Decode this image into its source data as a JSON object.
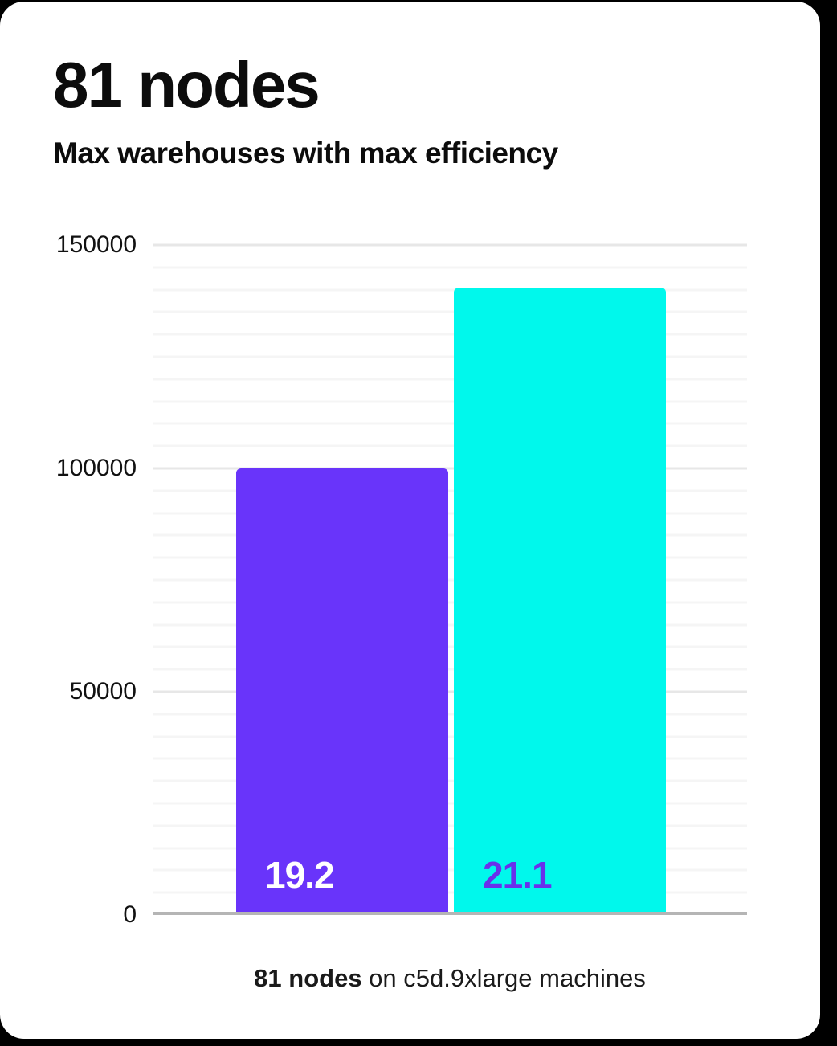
{
  "header": {
    "title": "81 nodes",
    "subtitle": "Max warehouses with max efficiency"
  },
  "caption": {
    "bold": "81 nodes",
    "rest": " on c5d.9xlarge machines"
  },
  "colors": {
    "page_background": "#000000",
    "card_background": "#ffffff",
    "bar_purple": "#6934fa",
    "bar_cyan": "#00f8ec",
    "label_on_purple": "#ffffff",
    "label_on_cyan": "#6930eb",
    "axis_line": "#b5b5b5",
    "gridline_minor": "#f5f5f5",
    "gridline_major": "#e7e7e7",
    "text": "#0c0c0c"
  },
  "chart_data": {
    "type": "bar",
    "title": "81 nodes",
    "subtitle": "Max warehouses with max efficiency",
    "caption": "81 nodes on c5d.9xlarge machines",
    "xlabel": "",
    "ylabel": "",
    "ylim": [
      0,
      150000
    ],
    "yticks": [
      0,
      50000,
      100000,
      150000
    ],
    "gridline_step": 5000,
    "major_step": 50000,
    "grid": true,
    "legend": false,
    "bars": [
      {
        "label": "19.2",
        "value": 99500,
        "color": "#6934fa",
        "label_color": "#ffffff"
      },
      {
        "label": "21.1",
        "value": 139900,
        "color": "#00f8ec",
        "label_color": "#6930eb"
      }
    ]
  }
}
